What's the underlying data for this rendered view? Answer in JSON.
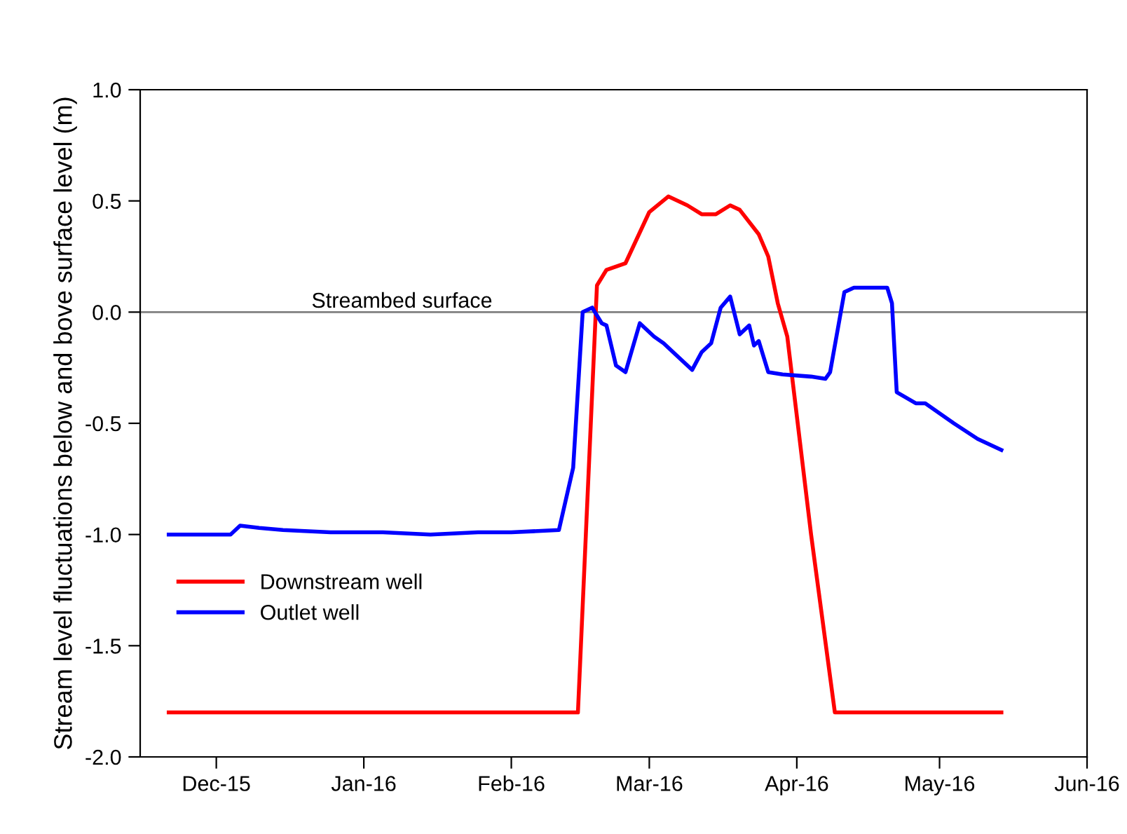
{
  "chart_data": {
    "type": "line",
    "ylabel": "Stream level fluctuations below and bove surface level (m)",
    "xlim": [
      "2015-11-15",
      "2016-06-01"
    ],
    "xticks": [
      {
        "value": "2015-12-01",
        "label": "Dec-15"
      },
      {
        "value": "2016-01-01",
        "label": "Jan-16"
      },
      {
        "value": "2016-02-01",
        "label": "Feb-16"
      },
      {
        "value": "2016-03-01",
        "label": "Mar-16"
      },
      {
        "value": "2016-04-01",
        "label": "Apr-16"
      },
      {
        "value": "2016-05-01",
        "label": "May-16"
      },
      {
        "value": "2016-06-01",
        "label": "Jun-16"
      }
    ],
    "ylim": [
      -2.0,
      1.0
    ],
    "yticks": [
      {
        "value": -2.0,
        "label": "-2.0"
      },
      {
        "value": -1.5,
        "label": "-1.5"
      },
      {
        "value": -1.0,
        "label": "-1.0"
      },
      {
        "value": -0.5,
        "label": "-0.5"
      },
      {
        "value": 0.0,
        "label": "0.0"
      },
      {
        "value": 0.5,
        "label": "0.5"
      },
      {
        "value": 1.0,
        "label": "1.0"
      }
    ],
    "grid": false,
    "legend": "bottom left",
    "marker": "none",
    "line_style": "solid",
    "ref_lines": [
      {
        "axis": "y",
        "value": 0.0,
        "label": "Streambed surface",
        "color": "#808080"
      }
    ],
    "series": [
      {
        "name": "Downstream well",
        "color": "#ff0000",
        "x": [
          "2015-11-21",
          "2016-02-15",
          "2016-02-19",
          "2016-02-21",
          "2016-02-25",
          "2016-03-01",
          "2016-03-05",
          "2016-03-09",
          "2016-03-12",
          "2016-03-15",
          "2016-03-18",
          "2016-03-20",
          "2016-03-24",
          "2016-03-26",
          "2016-03-28",
          "2016-03-30",
          "2016-04-04",
          "2016-04-09",
          "2016-05-14"
        ],
        "values": [
          -1.8,
          -1.8,
          0.12,
          0.19,
          0.22,
          0.45,
          0.52,
          0.48,
          0.44,
          0.44,
          0.48,
          0.46,
          0.35,
          0.25,
          0.04,
          -0.11,
          -1.0,
          -1.8,
          -1.8
        ]
      },
      {
        "name": "Outlet well",
        "color": "#0000ff",
        "x": [
          "2015-11-21",
          "2015-12-04",
          "2015-12-06",
          "2015-12-10",
          "2015-12-15",
          "2015-12-25",
          "2016-01-05",
          "2016-01-15",
          "2016-01-25",
          "2016-02-01",
          "2016-02-11",
          "2016-02-14",
          "2016-02-16",
          "2016-02-18",
          "2016-02-20",
          "2016-02-21",
          "2016-02-23",
          "2016-02-25",
          "2016-02-28",
          "2016-03-02",
          "2016-03-04",
          "2016-03-10",
          "2016-03-12",
          "2016-03-14",
          "2016-03-16",
          "2016-03-18",
          "2016-03-20",
          "2016-03-22",
          "2016-03-23",
          "2016-03-24",
          "2016-03-26",
          "2016-03-29",
          "2016-04-04",
          "2016-04-07",
          "2016-04-08",
          "2016-04-11",
          "2016-04-13",
          "2016-04-20",
          "2016-04-21",
          "2016-04-22",
          "2016-04-26",
          "2016-04-28",
          "2016-05-04",
          "2016-05-09",
          "2016-05-14"
        ],
        "values": [
          -1.0,
          -1.0,
          -0.96,
          -0.97,
          -0.98,
          -0.99,
          -0.99,
          -1.0,
          -0.99,
          -0.99,
          -0.98,
          -0.7,
          0.0,
          0.02,
          -0.05,
          -0.06,
          -0.24,
          -0.27,
          -0.05,
          -0.11,
          -0.14,
          -0.26,
          -0.18,
          -0.14,
          0.02,
          0.07,
          -0.1,
          -0.06,
          -0.15,
          -0.13,
          -0.27,
          -0.28,
          -0.29,
          -0.3,
          -0.27,
          0.09,
          0.11,
          0.11,
          0.04,
          -0.36,
          -0.41,
          -0.41,
          -0.5,
          -0.57,
          -0.62
        ]
      }
    ]
  }
}
